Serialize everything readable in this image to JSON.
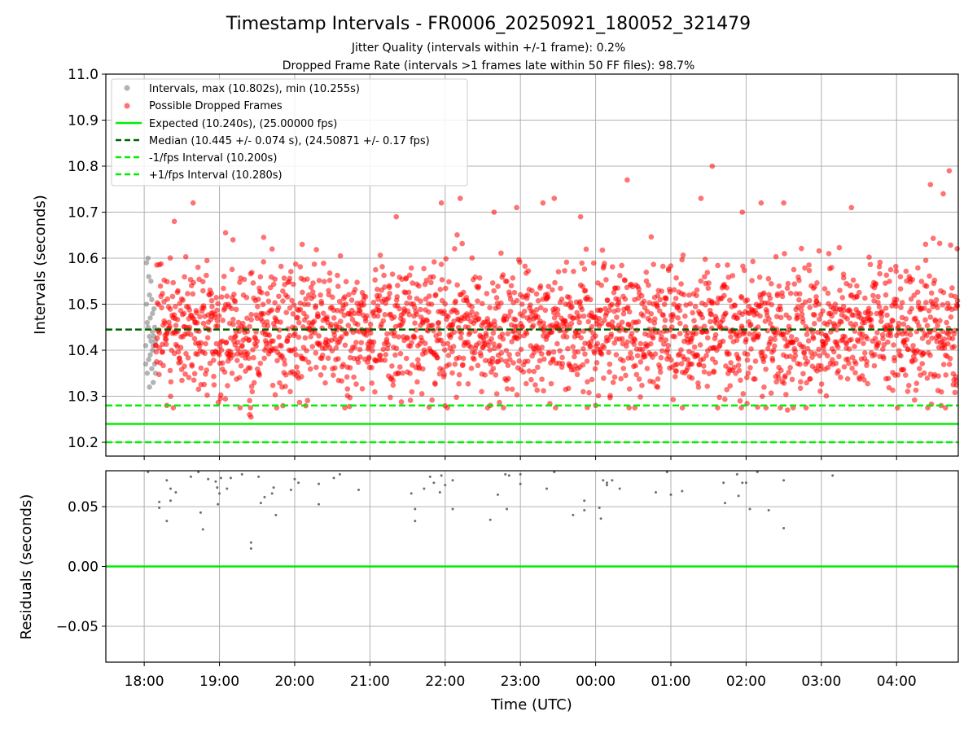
{
  "colors": {
    "intervals": "#808080",
    "dropped": "#ff0000",
    "expected": "#00ee00",
    "median": "#006400",
    "fps_interval": "#00ee00",
    "residuals": "#555555"
  },
  "chart_data": [
    {
      "type": "scatter",
      "title": "Timestamp Intervals - FR0006_20250921_180052_321479",
      "subtitle_1": "Jitter Quality (intervals within +/-1 frame): 0.2%",
      "subtitle_2": "Dropped Frame Rate (intervals >1 frames late within 50 FF files): 98.7%",
      "ylabel": "Intervals (seconds)",
      "ylim": [
        10.17,
        11.0
      ],
      "xlim_hours": [
        17.49,
        28.82
      ],
      "y_ticks": [
        "10.2",
        "10.3",
        "10.4",
        "10.5",
        "10.6",
        "10.7",
        "10.8",
        "10.9",
        "11.0"
      ],
      "grid": true,
      "legend_position": "top-left",
      "legend": [
        "Intervals, max (10.802s), min (10.255s)",
        "Possible Dropped Frames",
        "Expected (10.240s), (25.00000 fps)",
        "Median (10.445 +/- 0.074 s), (24.50871 +/- 0.17 fps)",
        "-1/fps Interval (10.200s)",
        "+1/fps Interval (10.280s)"
      ],
      "reference_lines": {
        "expected": 10.24,
        "median": 10.445,
        "minus_fps": 10.2,
        "plus_fps": 10.28
      },
      "stats": {
        "max": 10.802,
        "min": 10.255,
        "median": 10.445,
        "std": 0.074,
        "expected": 10.24
      },
      "series": [
        {
          "name": "Intervals, max (10.802s), min (10.255s)",
          "points": [
            [
              18.02,
              10.41
            ],
            [
              18.03,
              10.59
            ],
            [
              18.03,
              10.5
            ],
            [
              18.04,
              10.35
            ],
            [
              18.05,
              10.6
            ],
            [
              18.05,
              10.45
            ],
            [
              18.06,
              10.38
            ],
            [
              18.07,
              10.52
            ],
            [
              18.07,
              10.32
            ],
            [
              18.08,
              10.47
            ],
            [
              18.09,
              10.42
            ],
            [
              18.09,
              10.55
            ],
            [
              18.1,
              10.36
            ],
            [
              18.11,
              10.44
            ],
            [
              18.11,
              10.4
            ],
            [
              18.12,
              10.33
            ],
            [
              18.13,
              10.43
            ],
            [
              18.13,
              10.49
            ],
            [
              18.14,
              10.37
            ],
            [
              18.15,
              10.42
            ],
            [
              18.15,
              10.35
            ],
            [
              18.06,
              10.56
            ],
            [
              18.04,
              10.46
            ],
            [
              18.08,
              10.39
            ],
            [
              18.1,
              10.51
            ],
            [
              18.12,
              10.41
            ],
            [
              18.14,
              10.45
            ],
            [
              18.02,
              10.37
            ],
            [
              18.07,
              10.43
            ],
            [
              18.11,
              10.48
            ]
          ]
        },
        {
          "name": "Possible Dropped Frames",
          "count": 2400,
          "y_center": 10.445,
          "y_spread": 0.074,
          "x_range": [
            18.15,
            28.82
          ],
          "outliers": [
            [
              18.4,
              10.68
            ],
            [
              18.65,
              10.72
            ],
            [
              19.18,
              10.64
            ],
            [
              20.1,
              10.63
            ],
            [
              21.35,
              10.69
            ],
            [
              21.95,
              10.72
            ],
            [
              22.2,
              10.73
            ],
            [
              22.65,
              10.7
            ],
            [
              22.95,
              10.71
            ],
            [
              23.3,
              10.72
            ],
            [
              23.45,
              10.73
            ],
            [
              23.8,
              10.69
            ],
            [
              24.42,
              10.77
            ],
            [
              25.4,
              10.73
            ],
            [
              25.55,
              10.8
            ],
            [
              25.95,
              10.7
            ],
            [
              26.2,
              10.72
            ],
            [
              26.5,
              10.72
            ],
            [
              27.4,
              10.71
            ],
            [
              28.45,
              10.76
            ],
            [
              28.7,
              10.79
            ],
            [
              28.62,
              10.74
            ],
            [
              19.4,
              10.26
            ],
            [
              19.42,
              10.255
            ],
            [
              26.55,
              10.27
            ],
            [
              18.3,
              10.28
            ],
            [
              24.0,
              10.28
            ],
            [
              22.6,
              10.28
            ],
            [
              27.1,
              10.61
            ],
            [
              19.7,
              10.62
            ]
          ]
        }
      ]
    },
    {
      "type": "scatter",
      "ylabel": "Residuals (seconds)",
      "xlabel": "Time (UTC)",
      "ylim": [
        -0.08,
        0.08
      ],
      "xlim_hours": [
        17.49,
        28.82
      ],
      "y_ticks": [
        "0.05",
        "0.00",
        "−0.05"
      ],
      "y_tick_values": [
        0.05,
        0.0,
        -0.05
      ],
      "x_ticks": [
        "18:00",
        "19:00",
        "20:00",
        "21:00",
        "22:00",
        "23:00",
        "00:00",
        "01:00",
        "02:00",
        "03:00",
        "04:00"
      ],
      "x_tick_hours": [
        18,
        19,
        20,
        21,
        22,
        23,
        24,
        25,
        26,
        27,
        28
      ],
      "zero_line": 0.0,
      "grid": true,
      "points": [
        [
          18.05,
          0.079
        ],
        [
          18.2,
          0.054
        ],
        [
          18.2,
          0.049
        ],
        [
          18.3,
          0.072
        ],
        [
          18.3,
          0.038
        ],
        [
          18.35,
          0.065
        ],
        [
          18.35,
          0.055
        ],
        [
          18.42,
          0.062
        ],
        [
          18.62,
          0.075
        ],
        [
          18.72,
          0.079
        ],
        [
          18.75,
          0.045
        ],
        [
          18.78,
          0.031
        ],
        [
          18.85,
          0.073
        ],
        [
          18.95,
          0.071
        ],
        [
          18.97,
          0.066
        ],
        [
          18.98,
          0.052
        ],
        [
          19.0,
          0.061
        ],
        [
          19.02,
          0.074
        ],
        [
          19.1,
          0.065
        ],
        [
          19.15,
          0.074
        ],
        [
          19.3,
          0.077
        ],
        [
          19.42,
          0.02
        ],
        [
          19.42,
          0.015
        ],
        [
          19.52,
          0.075
        ],
        [
          19.55,
          0.053
        ],
        [
          19.6,
          0.058
        ],
        [
          19.7,
          0.061
        ],
        [
          19.72,
          0.066
        ],
        [
          19.75,
          0.043
        ],
        [
          19.95,
          0.064
        ],
        [
          20.0,
          0.073
        ],
        [
          20.05,
          0.07
        ],
        [
          20.32,
          0.069
        ],
        [
          20.32,
          0.052
        ],
        [
          20.52,
          0.074
        ],
        [
          20.6,
          0.077
        ],
        [
          20.85,
          0.064
        ],
        [
          21.55,
          0.061
        ],
        [
          21.6,
          0.048
        ],
        [
          21.6,
          0.038
        ],
        [
          21.72,
          0.065
        ],
        [
          21.8,
          0.075
        ],
        [
          21.85,
          0.07
        ],
        [
          21.93,
          0.062
        ],
        [
          21.95,
          0.076
        ],
        [
          22.0,
          0.068
        ],
        [
          22.1,
          0.048
        ],
        [
          22.1,
          0.072
        ],
        [
          22.6,
          0.039
        ],
        [
          22.7,
          0.06
        ],
        [
          22.8,
          0.077
        ],
        [
          22.82,
          0.048
        ],
        [
          22.85,
          0.076
        ],
        [
          23.0,
          0.077
        ],
        [
          23.0,
          0.069
        ],
        [
          23.35,
          0.065
        ],
        [
          23.45,
          0.079
        ],
        [
          23.7,
          0.043
        ],
        [
          23.85,
          0.055
        ],
        [
          23.85,
          0.047
        ],
        [
          24.05,
          0.049
        ],
        [
          24.07,
          0.04
        ],
        [
          24.1,
          0.072
        ],
        [
          24.15,
          0.07
        ],
        [
          24.15,
          0.068
        ],
        [
          24.22,
          0.072
        ],
        [
          24.32,
          0.065
        ],
        [
          24.8,
          0.062
        ],
        [
          24.95,
          0.079
        ],
        [
          25.0,
          0.06
        ],
        [
          25.15,
          0.063
        ],
        [
          25.7,
          0.07
        ],
        [
          25.72,
          0.053
        ],
        [
          25.88,
          0.077
        ],
        [
          25.9,
          0.059
        ],
        [
          25.95,
          0.07
        ],
        [
          26.0,
          0.07
        ],
        [
          26.05,
          0.048
        ],
        [
          26.15,
          0.079
        ],
        [
          26.3,
          0.047
        ],
        [
          26.5,
          0.072
        ],
        [
          26.5,
          0.032
        ],
        [
          27.15,
          0.076
        ]
      ]
    }
  ]
}
